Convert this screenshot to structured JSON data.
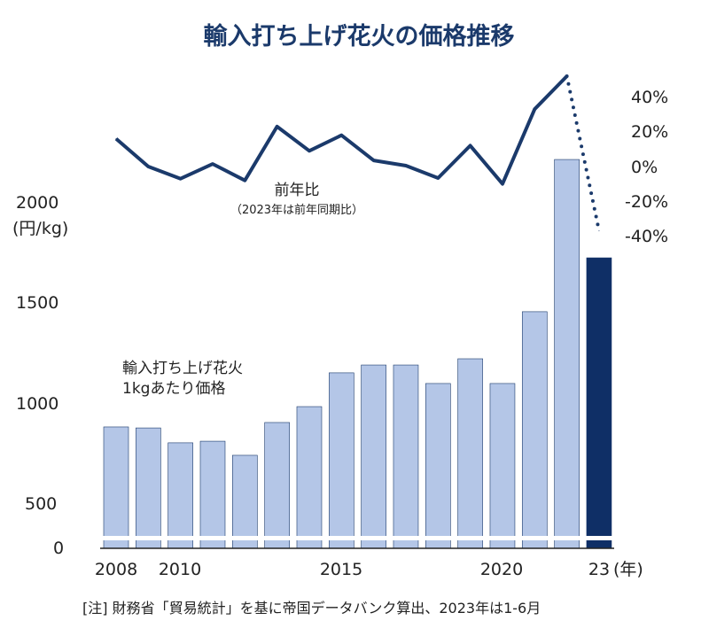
{
  "chart_data": {
    "type": "bar+line",
    "title": "輸入打ち上げ花火の価格推移",
    "categories": [
      "2008",
      "2009",
      "2010",
      "2011",
      "2012",
      "2013",
      "2014",
      "2015",
      "2016",
      "2017",
      "2018",
      "2019",
      "2020",
      "2021",
      "2022",
      "2023"
    ],
    "x_tick_labels": [
      "2008",
      "2010",
      "2015",
      "2020",
      "23"
    ],
    "x_unit": "(年)",
    "bar_series": {
      "name": "輸入打ち上げ花火 1kgあたり価格",
      "label_line1": "輸入打ち上げ花火",
      "label_line2": "1kgあたり価格",
      "values": [
        879,
        874,
        800,
        808,
        738,
        901,
        980,
        1148,
        1187,
        1187,
        1095,
        1218,
        1095,
        1452,
        2209,
        1720
      ],
      "color": "#b4c6e7",
      "highlight_color": "#0f2f66",
      "highlight_category": "2023"
    },
    "left_axis": {
      "unit": "(円/kg)",
      "ticks": [
        "0",
        "500",
        "1000",
        "1500",
        "2000"
      ],
      "ylim": [
        0,
        2300
      ],
      "axis_break": true
    },
    "line_series": {
      "name": "前年比",
      "sublabel": "（2023年は前年同期比）",
      "values": [
        16,
        0,
        -7,
        1.5,
        -8,
        23,
        9,
        18,
        3.5,
        0.5,
        -6.6,
        12,
        -10,
        33,
        52,
        -37
      ],
      "color": "#1b3a6b",
      "dotted_last_segment": true
    },
    "right_axis": {
      "ticks": [
        "40%",
        "20%",
        "0%",
        "-20%",
        "-40%"
      ],
      "ylim": [
        -40,
        55
      ]
    },
    "grid": false,
    "note": "[注] 財務省「貿易統計」を基に帝国データバンク算出、2023年は1-6月"
  }
}
